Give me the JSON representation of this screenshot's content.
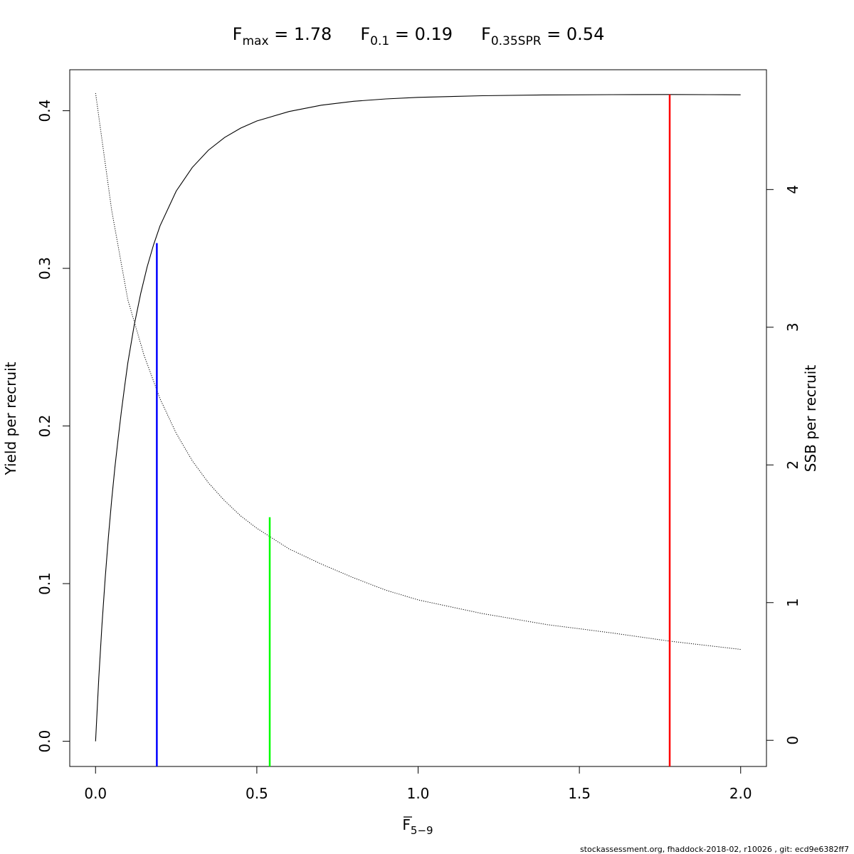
{
  "chart_data": {
    "type": "line",
    "title": {
      "fmax": {
        "base": "F",
        "sub": "max",
        "value": "1.78"
      },
      "f01": {
        "base": "F",
        "sub": "0.1",
        "value": "0.19"
      },
      "f035": {
        "base": "F",
        "sub": "0.35SPR",
        "value": "0.54"
      }
    },
    "xlabel": {
      "base": "F",
      "sub": "5−9"
    },
    "ylabel_left": "Yield per recruit",
    "ylabel_right": "SSB per recruit",
    "xlim": [
      -0.08,
      2.08
    ],
    "ylim_left": [
      -0.016,
      0.426
    ],
    "ylim_right": [
      -0.19,
      4.87
    ],
    "x_ticks": [
      0,
      0.5,
      1,
      1.5,
      2
    ],
    "x_tick_labels": [
      "0.0",
      "0.5",
      "1.0",
      "1.5",
      "2.0"
    ],
    "y_left_ticks": [
      0,
      0.1,
      0.2,
      0.3,
      0.4
    ],
    "y_left_tick_labels": [
      "0.0",
      "0.1",
      "0.2",
      "0.3",
      "0.4"
    ],
    "y_right_ticks": [
      0,
      1,
      2,
      3,
      4
    ],
    "y_right_tick_labels": [
      "0",
      "1",
      "2",
      "3",
      "4"
    ],
    "grid": false,
    "series": [
      {
        "axis": "left",
        "style": "solid",
        "color": "#000000",
        "x": [
          0,
          0.01,
          0.02,
          0.03,
          0.04,
          0.05,
          0.06,
          0.07,
          0.08,
          0.09,
          0.1,
          0.12,
          0.14,
          0.16,
          0.18,
          0.2,
          0.25,
          0.3,
          0.35,
          0.4,
          0.45,
          0.5,
          0.6,
          0.7,
          0.8,
          0.9,
          1.0,
          1.2,
          1.4,
          1.6,
          1.78,
          1.9,
          2.0
        ],
        "values": [
          0,
          0.04,
          0.074,
          0.104,
          0.13,
          0.153,
          0.174,
          0.192,
          0.209,
          0.225,
          0.24,
          0.264,
          0.284,
          0.301,
          0.315,
          0.327,
          0.349,
          0.364,
          0.375,
          0.383,
          0.389,
          0.3935,
          0.3995,
          0.4035,
          0.406,
          0.4075,
          0.4085,
          0.4095,
          0.41,
          0.4102,
          0.4103,
          0.4102,
          0.4101
        ]
      },
      {
        "axis": "right",
        "style": "dotted",
        "color": "#000000",
        "x": [
          0,
          0.05,
          0.1,
          0.15,
          0.2,
          0.25,
          0.3,
          0.35,
          0.4,
          0.45,
          0.5,
          0.6,
          0.7,
          0.8,
          0.9,
          1.0,
          1.2,
          1.4,
          1.6,
          1.78,
          2.0
        ],
        "values": [
          4.7,
          3.85,
          3.2,
          2.8,
          2.48,
          2.23,
          2.03,
          1.87,
          1.74,
          1.63,
          1.54,
          1.39,
          1.28,
          1.18,
          1.09,
          1.02,
          0.92,
          0.84,
          0.78,
          0.72,
          0.66
        ]
      }
    ],
    "reference_lines": [
      {
        "x": 0.19,
        "y_top": 0.316,
        "axis": "left",
        "color": "#0000ff"
      },
      {
        "x": 0.54,
        "y_top": 1.62,
        "axis": "right",
        "color": "#00ff00"
      },
      {
        "x": 1.78,
        "y_top": 0.4103,
        "axis": "left",
        "color": "#ff0000"
      }
    ]
  },
  "footer": "stockassessment.org, fhaddock-2018-02, r10026 , git: ecd9e6382ff7"
}
